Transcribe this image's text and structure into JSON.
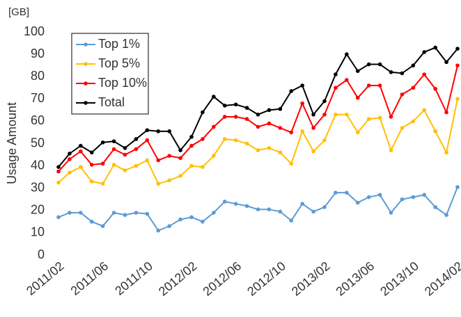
{
  "chart_data": {
    "type": "line",
    "unit_label": "[GB]",
    "y_label": "Usage Amount",
    "categories": [
      "2011/02",
      null,
      null,
      null,
      "2011/06",
      null,
      null,
      null,
      "2011/10",
      null,
      null,
      null,
      "2012/02",
      null,
      null,
      null,
      "2012/06",
      null,
      null,
      null,
      "2012/10",
      null,
      null,
      null,
      "2013/02",
      null,
      null,
      null,
      "2013/06",
      null,
      null,
      null,
      "2013/10",
      null,
      null,
      null,
      "2014/02"
    ],
    "series": [
      {
        "name": "Top 1%",
        "color": "#5b9bd5",
        "values": [
          17,
          19,
          19,
          15,
          13,
          19,
          18,
          19,
          18.5,
          11,
          13,
          16,
          17,
          15,
          19,
          24,
          23,
          22,
          20.5,
          20.5,
          19.5,
          15.5,
          23,
          19.5,
          21.5,
          28,
          28,
          23.5,
          26,
          27,
          19,
          25,
          26,
          27,
          21.5,
          18,
          30.5
        ]
      },
      {
        "name": "Top 5%",
        "color": "#ffc000",
        "values": [
          32.5,
          37,
          39.5,
          33,
          32,
          40.5,
          38,
          40,
          42.5,
          32,
          33.5,
          35.5,
          40,
          39.5,
          44.5,
          52,
          51.5,
          50,
          47,
          48,
          46,
          41,
          55.5,
          46.5,
          51.5,
          63,
          63,
          55,
          61,
          61.5,
          47,
          57,
          60,
          65,
          55.5,
          46,
          70
        ]
      },
      {
        "name": "Top 10%",
        "color": "#ff0000",
        "values": [
          37.5,
          43,
          46.5,
          40.5,
          41,
          47.5,
          45,
          47.5,
          51.5,
          42.5,
          44.5,
          43.5,
          49,
          52,
          57.5,
          62,
          62,
          61,
          57.5,
          59,
          57,
          55,
          68,
          57,
          63,
          75,
          78.5,
          70.5,
          76,
          76,
          62,
          72,
          75,
          81,
          74.5,
          64,
          85
        ]
      },
      {
        "name": "Total",
        "color": "#000000",
        "values": [
          39.5,
          45.5,
          49,
          46,
          50.5,
          51,
          48,
          52,
          56,
          55.5,
          55.5,
          47,
          53,
          64,
          71,
          67,
          67.5,
          66,
          63,
          65,
          65.5,
          73.5,
          76,
          63,
          69,
          81,
          90,
          82.5,
          85.5,
          85.5,
          82,
          81.5,
          85,
          91,
          93,
          86.5,
          92.5
        ]
      }
    ],
    "ylim": [
      0,
      100
    ],
    "yticks": [
      0,
      10,
      20,
      30,
      40,
      50,
      60,
      70,
      80,
      90,
      100
    ],
    "grid": false,
    "legend": "upper left"
  }
}
